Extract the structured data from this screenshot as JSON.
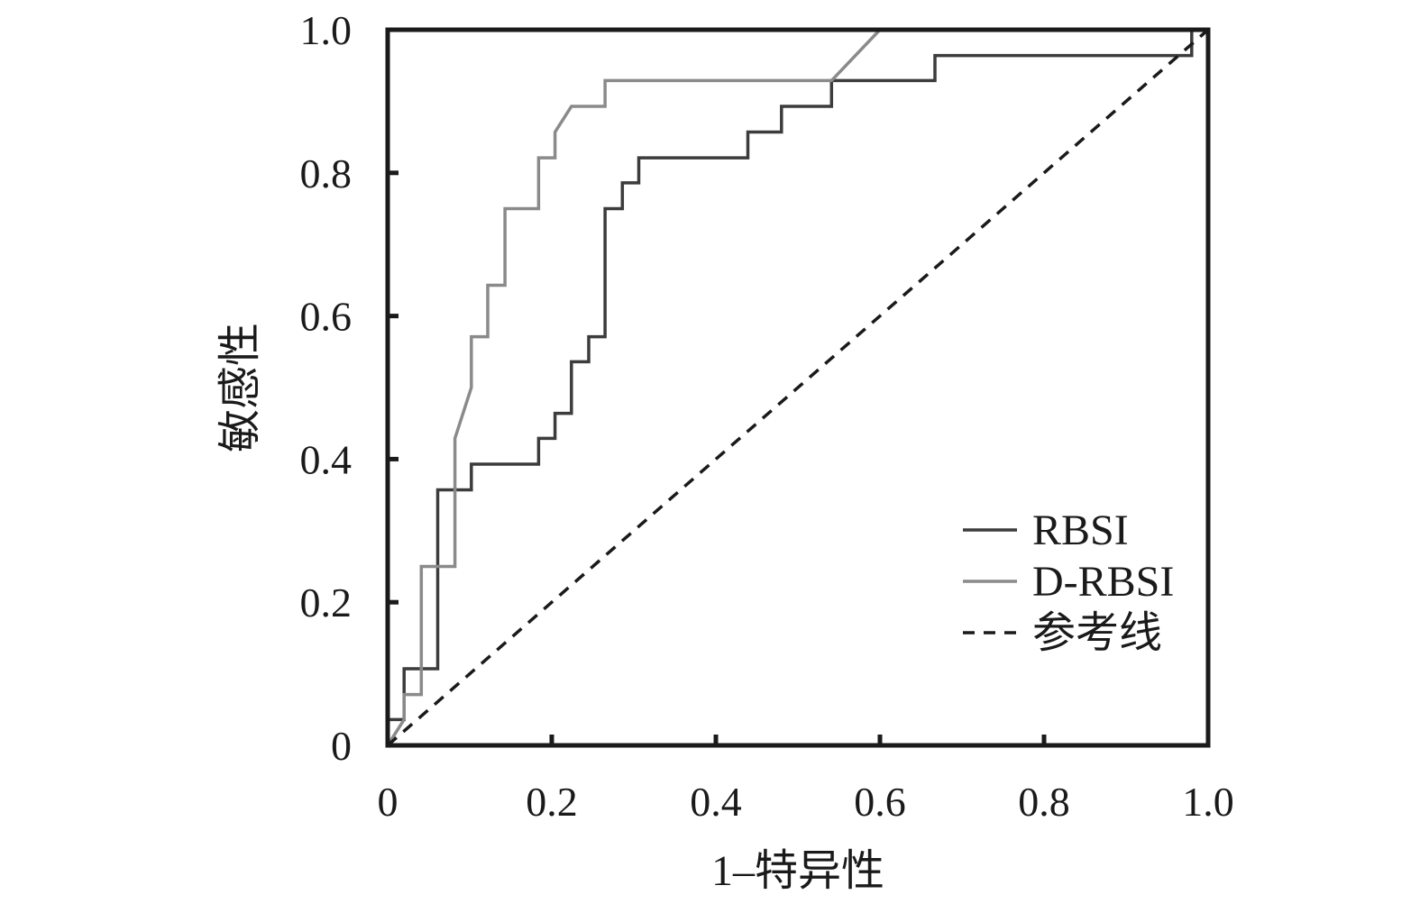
{
  "chart_data": {
    "type": "line",
    "title": "",
    "xlabel": "1–特异性",
    "ylabel": "敏感性",
    "xlim": [
      0,
      1.0
    ],
    "ylim": [
      0,
      1.0
    ],
    "x_ticks": [
      0,
      0.2,
      0.4,
      0.6,
      0.8,
      1.0
    ],
    "y_ticks": [
      0,
      0.2,
      0.4,
      0.6,
      0.8,
      1.0
    ],
    "x_tick_labels": [
      "0",
      "0.2",
      "0.4",
      "0.6",
      "0.8",
      "1.0"
    ],
    "y_tick_labels": [
      "0",
      "0.2",
      "0.4",
      "0.6",
      "0.8",
      "1.0"
    ],
    "grid": false,
    "legend_position": "bottom-right",
    "series": [
      {
        "name": "RBSI",
        "color": "#3c3c3c",
        "dash": "solid",
        "points": [
          [
            0,
            0
          ],
          [
            0,
            0.036
          ],
          [
            0.02,
            0.036
          ],
          [
            0.02,
            0.107
          ],
          [
            0.061,
            0.107
          ],
          [
            0.061,
            0.357
          ],
          [
            0.102,
            0.357
          ],
          [
            0.102,
            0.393
          ],
          [
            0.184,
            0.393
          ],
          [
            0.184,
            0.429
          ],
          [
            0.204,
            0.429
          ],
          [
            0.204,
            0.464
          ],
          [
            0.224,
            0.464
          ],
          [
            0.224,
            0.536
          ],
          [
            0.245,
            0.536
          ],
          [
            0.245,
            0.571
          ],
          [
            0.265,
            0.571
          ],
          [
            0.265,
            0.75
          ],
          [
            0.286,
            0.75
          ],
          [
            0.286,
            0.786
          ],
          [
            0.306,
            0.786
          ],
          [
            0.306,
            0.821
          ],
          [
            0.439,
            0.821
          ],
          [
            0.439,
            0.857
          ],
          [
            0.48,
            0.857
          ],
          [
            0.48,
            0.893
          ],
          [
            0.541,
            0.893
          ],
          [
            0.541,
            0.929
          ],
          [
            0.667,
            0.929
          ],
          [
            0.667,
            0.964
          ],
          [
            0.98,
            0.964
          ],
          [
            0.98,
            1.0
          ]
        ]
      },
      {
        "name": "D-RBSI",
        "color": "#8a8a8a",
        "dash": "solid",
        "points": [
          [
            0,
            0
          ],
          [
            0.02,
            0.036
          ],
          [
            0.02,
            0.071
          ],
          [
            0.041,
            0.071
          ],
          [
            0.041,
            0.25
          ],
          [
            0.082,
            0.25
          ],
          [
            0.082,
            0.429
          ],
          [
            0.102,
            0.5
          ],
          [
            0.102,
            0.571
          ],
          [
            0.122,
            0.571
          ],
          [
            0.122,
            0.643
          ],
          [
            0.143,
            0.643
          ],
          [
            0.143,
            0.75
          ],
          [
            0.184,
            0.75
          ],
          [
            0.184,
            0.821
          ],
          [
            0.204,
            0.821
          ],
          [
            0.204,
            0.857
          ],
          [
            0.224,
            0.893
          ],
          [
            0.265,
            0.893
          ],
          [
            0.265,
            0.929
          ],
          [
            0.541,
            0.929
          ],
          [
            0.6,
            1.0
          ]
        ]
      },
      {
        "name": "参考线",
        "color": "#1a1a1a",
        "dash": "dashed",
        "points": [
          [
            0,
            0
          ],
          [
            1.0,
            1.0
          ]
        ]
      }
    ]
  }
}
